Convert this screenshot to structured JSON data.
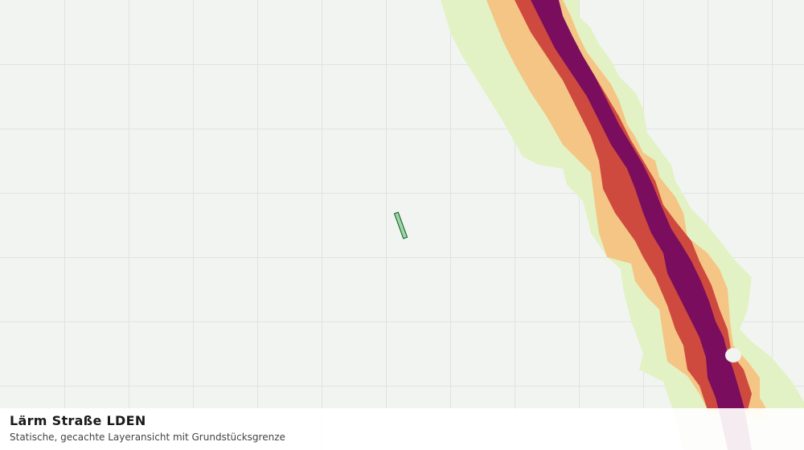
{
  "title": "Lärm Straße LDEN",
  "subtitle": "Statische, gecachte Layeransicht mit Grundstücksgrenze"
}
